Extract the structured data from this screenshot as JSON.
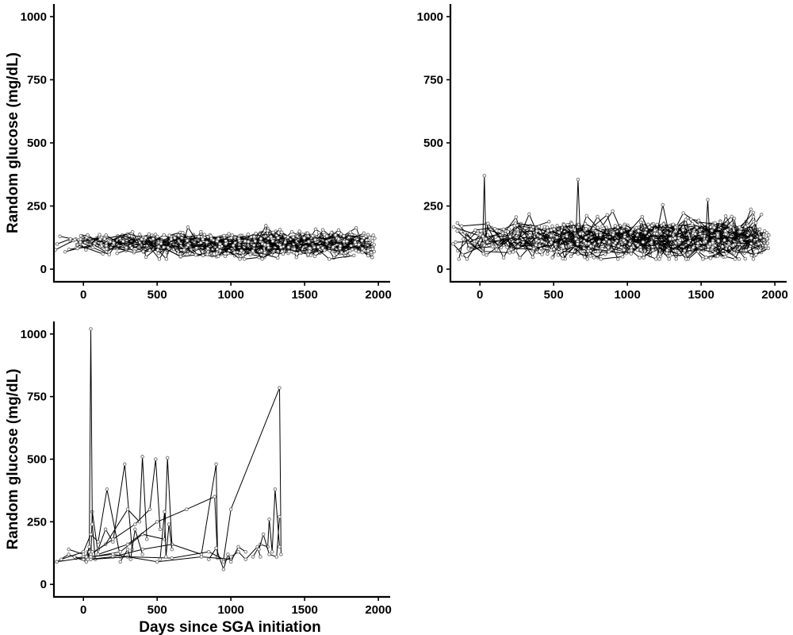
{
  "figure": {
    "x_axis_title": "Days since SGA initiation",
    "y_axis_title": "Random glucose (mg/dL)"
  },
  "chart_data": [
    {
      "type": "line",
      "panel": "top-left",
      "xlabel": "",
      "ylabel": "Random glucose (mg/dL)",
      "xlim": [
        -200,
        2080
      ],
      "ylim": [
        -50,
        1050
      ],
      "xticks": [
        0,
        500,
        1000,
        1500,
        2000
      ],
      "yticks": [
        0,
        250,
        500,
        750,
        1000
      ],
      "grid": false,
      "pattern": {
        "x_range": [
          -190,
          1980
        ],
        "y_center": 100,
        "y_spread": 22,
        "y_max_observed": 180,
        "y_min_observed": 40,
        "series_count": 120
      },
      "highlights": []
    },
    {
      "type": "line",
      "panel": "top-right",
      "xlabel": "",
      "ylabel": "",
      "xlim": [
        -200,
        2080
      ],
      "ylim": [
        -50,
        1050
      ],
      "xticks": [
        0,
        500,
        1000,
        1500,
        2000
      ],
      "yticks": [
        0,
        250,
        500,
        750,
        1000
      ],
      "grid": false,
      "pattern": {
        "x_range": [
          -190,
          1960
        ],
        "y_center": 120,
        "y_spread": 35,
        "y_max_observed": 370,
        "y_min_observed": 40,
        "series_count": 110
      },
      "highlights": [
        {
          "x": [
            20,
            30,
            40
          ],
          "y": [
            130,
            370,
            120
          ]
        },
        {
          "x": [
            650,
            665,
            680
          ],
          "y": [
            120,
            355,
            140
          ]
        },
        {
          "x": [
            1530,
            1545,
            1560
          ],
          "y": [
            110,
            275,
            100
          ]
        },
        {
          "x": [
            1200,
            1240,
            1290
          ],
          "y": [
            140,
            255,
            120
          ]
        },
        {
          "x": [
            830,
            900,
            960
          ],
          "y": [
            170,
            230,
            150
          ]
        }
      ]
    },
    {
      "type": "line",
      "panel": "bottom-left",
      "xlabel": "Days since SGA initiation",
      "ylabel": "Random glucose (mg/dL)",
      "xlim": [
        -200,
        2080
      ],
      "ylim": [
        -50,
        1050
      ],
      "xticks": [
        0,
        500,
        1000,
        1500,
        2000
      ],
      "yticks": [
        0,
        250,
        500,
        750,
        1000
      ],
      "grid": false,
      "series": [
        {
          "x": [
            -180,
            -100,
            -50,
            0,
            20,
            30,
            50,
            60,
            100
          ],
          "y": [
            90,
            120,
            105,
            110,
            95,
            130,
            100,
            290,
            120
          ]
        },
        {
          "x": [
            -60,
            20,
            40,
            50,
            60,
            80
          ],
          "y": [
            110,
            90,
            130,
            1020,
            240,
            100
          ]
        },
        {
          "x": [
            -150,
            0,
            50,
            100,
            160,
            250
          ],
          "y": [
            100,
            130,
            200,
            170,
            380,
            110
          ]
        },
        {
          "x": [
            0,
            100,
            150,
            200,
            280,
            330
          ],
          "y": [
            100,
            140,
            220,
            170,
            480,
            140
          ]
        },
        {
          "x": [
            20,
            150,
            300,
            380,
            400,
            430
          ],
          "y": [
            110,
            160,
            300,
            250,
            510,
            180
          ]
        },
        {
          "x": [
            50,
            200,
            350,
            450,
            490,
            520
          ],
          "y": [
            120,
            180,
            240,
            300,
            500,
            220
          ]
        },
        {
          "x": [
            60,
            250,
            400,
            550,
            570,
            600
          ],
          "y": [
            110,
            130,
            200,
            180,
            505,
            160
          ]
        },
        {
          "x": [
            100,
            300,
            500,
            700,
            890,
            910
          ],
          "y": [
            120,
            160,
            250,
            300,
            350,
            105
          ]
        },
        {
          "x": [
            30,
            200,
            400,
            600,
            800,
            900,
            910
          ],
          "y": [
            100,
            110,
            140,
            160,
            120,
            480,
            110
          ]
        },
        {
          "x": [
            50,
            300,
            600,
            850,
            950,
            1000,
            1330,
            1340
          ],
          "y": [
            100,
            110,
            105,
            130,
            100,
            300,
            785,
            120
          ]
        },
        {
          "x": [
            -180,
            50,
            200,
            500,
            800,
            1000
          ],
          "y": [
            90,
            110,
            120,
            90,
            110,
            100
          ]
        },
        {
          "x": [
            950,
            1000,
            1050,
            1100,
            1180,
            1200
          ],
          "y": [
            90,
            110,
            130,
            100,
            150,
            110
          ]
        },
        {
          "x": [
            1150,
            1200,
            1250,
            1260,
            1280,
            1300,
            1330
          ],
          "y": [
            110,
            160,
            150,
            260,
            130,
            380,
            150
          ]
        },
        {
          "x": [
            850,
            900,
            950,
            980,
            1000,
            1050,
            1100
          ],
          "y": [
            100,
            145,
            60,
            120,
            90,
            150,
            130
          ]
        },
        {
          "x": [
            250,
            300,
            320,
            350,
            400
          ],
          "y": [
            90,
            140,
            100,
            220,
            120
          ]
        },
        {
          "x": [
            520,
            550,
            560,
            580,
            600
          ],
          "y": [
            100,
            290,
            110,
            240,
            140
          ]
        },
        {
          "x": [
            -100,
            0,
            20,
            40,
            60
          ],
          "y": [
            140,
            120,
            110,
            150,
            130
          ]
        },
        {
          "x": [
            1190,
            1220,
            1260,
            1310,
            1330
          ],
          "y": [
            140,
            200,
            120,
            110,
            270
          ]
        }
      ]
    }
  ]
}
